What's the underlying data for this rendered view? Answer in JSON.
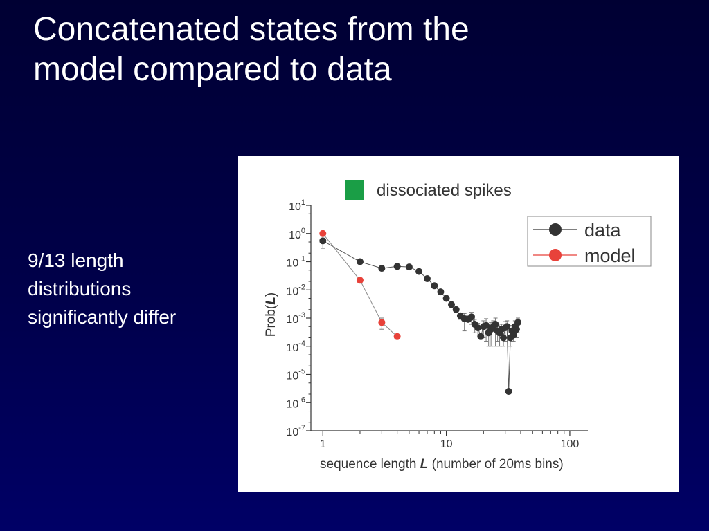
{
  "slide": {
    "title_lines": [
      "Concatenated states from the",
      "model compared to data"
    ],
    "bullet_lines": [
      "9/13 length",
      "distributions",
      "significantly differ"
    ]
  },
  "chart_data": {
    "type": "scatter",
    "title": "dissociated spikes",
    "title_marker_color": "#1a9e46",
    "xlabel": {
      "prefix": "sequence length ",
      "var": "L",
      "suffix": " (number of 20ms bins)"
    },
    "ylabel": {
      "prefix": "Prob(",
      "var": "L",
      "suffix": ")"
    },
    "x_scale": "log",
    "y_scale": "log",
    "xlim": [
      0.8,
      140
    ],
    "ylim": [
      1e-07,
      10
    ],
    "x_ticks": [
      {
        "value": 1,
        "label": "1"
      },
      {
        "value": 10,
        "label": "10"
      },
      {
        "value": 100,
        "label": "100"
      }
    ],
    "y_ticks": [
      {
        "value": 10,
        "base": "10",
        "exp": "1"
      },
      {
        "value": 1,
        "base": "10",
        "exp": "0"
      },
      {
        "value": 0.1,
        "base": "10",
        "exp": "-1"
      },
      {
        "value": 0.01,
        "base": "10",
        "exp": "-2"
      },
      {
        "value": 0.001,
        "base": "10",
        "exp": "-3"
      },
      {
        "value": 0.0001,
        "base": "10",
        "exp": "-4"
      },
      {
        "value": 1e-05,
        "base": "10",
        "exp": "-5"
      },
      {
        "value": 1e-06,
        "base": "10",
        "exp": "-6"
      },
      {
        "value": 1e-07,
        "base": "10",
        "exp": "-7"
      }
    ],
    "grid": false,
    "legend_position": "top-right",
    "series": [
      {
        "name": "data",
        "color": "#333333",
        "x": [
          1,
          2,
          3,
          4,
          5,
          6,
          7,
          8,
          9,
          10,
          11,
          12,
          13,
          14,
          15,
          16,
          17,
          18,
          19,
          20,
          21,
          22,
          23,
          24,
          25,
          26,
          27,
          28,
          29,
          30,
          31,
          32,
          33,
          34,
          35,
          36,
          37,
          38
        ],
        "y": [
          0.55,
          0.1,
          0.058,
          0.068,
          0.065,
          0.045,
          0.025,
          0.014,
          0.0085,
          0.005,
          0.003,
          0.002,
          0.0012,
          0.00095,
          0.0009,
          0.0011,
          0.0006,
          0.00045,
          0.00022,
          0.0005,
          0.00055,
          0.0003,
          0.0004,
          0.0005,
          0.0006,
          0.00035,
          0.0003,
          0.0004,
          0.0002,
          0.00045,
          0.0005,
          2.5e-06,
          0.0002,
          0.00035,
          0.00025,
          0.0005,
          0.0004,
          0.0007
        ],
        "y_err_low": [
          0.25,
          null,
          null,
          null,
          null,
          null,
          null,
          null,
          null,
          null,
          null,
          null,
          0.0003,
          0.0006,
          5e-07,
          0.0005,
          0.0003,
          0.0002,
          null,
          0.0003,
          0.0004,
          0.0002,
          0.0003,
          4e-06,
          0.0005,
          0.0002,
          0.0002,
          0.0002,
          0.0001,
          0.0003,
          3e-06,
          null,
          0.0001,
          0.0002,
          0.0001,
          0.0003,
          0.0002,
          0.0004
        ],
        "y_err_high": [
          0.25,
          null,
          null,
          null,
          null,
          null,
          null,
          null,
          null,
          null,
          null,
          null,
          0.0003,
          0.0005,
          0.0003,
          0.0005,
          0.0003,
          0.0002,
          null,
          0.0003,
          0.0004,
          0.0002,
          0.0003,
          0.0003,
          0.0004,
          0.0002,
          0.0002,
          0.0002,
          0.0001,
          0.0003,
          0.0003,
          null,
          0.0001,
          0.0002,
          0.0001,
          0.0003,
          0.0002,
          0.0003
        ]
      },
      {
        "name": "model",
        "color": "#e8423a",
        "x": [
          1,
          2,
          3,
          4
        ],
        "y": [
          1.0,
          0.022,
          0.0007,
          0.00022
        ],
        "y_err_low": [
          null,
          null,
          0.0003,
          null
        ],
        "y_err_high": [
          null,
          null,
          0.0003,
          null
        ]
      }
    ]
  }
}
